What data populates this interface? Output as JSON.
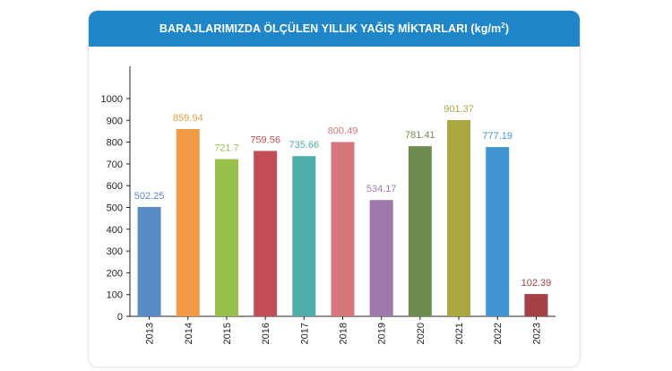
{
  "chart_data": {
    "type": "bar",
    "title": "BARAJLARIMIZDA ÖLÇÜLEN YILLIK YAĞIŞ MİKTARLARI (kg/m",
    "title_superscript": "2",
    "title_suffix": ")",
    "categories": [
      "2013",
      "2014",
      "2015",
      "2016",
      "2017",
      "2018",
      "2019",
      "2020",
      "2021",
      "2022",
      "2023"
    ],
    "values": [
      502.25,
      859.94,
      721.7,
      759.56,
      735.66,
      800.49,
      534.17,
      781.41,
      901.37,
      777.19,
      102.39
    ],
    "value_labels": [
      "502.25",
      "859.94",
      "721.7",
      "759.56",
      "735.66",
      "800.49",
      "534.17",
      "781.41",
      "901.37",
      "777.19",
      "102.39"
    ],
    "y_ticks": [
      "0",
      "100",
      "200",
      "300",
      "400",
      "500",
      "600",
      "700",
      "800",
      "900",
      "1000"
    ],
    "ylim": [
      0,
      1000
    ],
    "grid": false,
    "colors": [
      "#5b8bc7",
      "#f09a44",
      "#98bf4a",
      "#c14f55",
      "#4eaca9",
      "#d4767a",
      "#9f79ad",
      "#6c8d4f",
      "#aaa640",
      "#3f95cf",
      "#a44046"
    ],
    "label_colors": [
      "#5b8bc7",
      "#e8a045",
      "#98bf4a",
      "#c14f55",
      "#4eaca9",
      "#d4767a",
      "#9f79ad",
      "#6c8d4f",
      "#aaa640",
      "#3f95cf",
      "#a44046"
    ],
    "xlabel": "",
    "ylabel": ""
  }
}
